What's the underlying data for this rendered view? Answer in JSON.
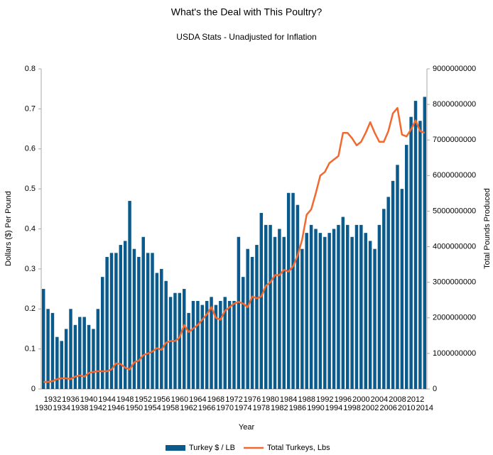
{
  "chart_data": {
    "type": "bar",
    "title": "What's the Deal with This Poultry?",
    "subtitle": "USDA Stats - Unadjusted for Inflation",
    "x_label": "Year",
    "y_label": "Dollars ($) Per Pound",
    "y2_label": "Total Pounds Produced",
    "categories": [
      1930,
      null,
      1932,
      null,
      1934,
      null,
      1936,
      null,
      1938,
      null,
      1940,
      null,
      1942,
      null,
      1944,
      null,
      1946,
      null,
      1948,
      null,
      1950,
      null,
      1952,
      null,
      1954,
      null,
      1956,
      null,
      1958,
      null,
      1960,
      null,
      1962,
      null,
      1964,
      null,
      1966,
      null,
      1968,
      null,
      1970,
      null,
      1972,
      null,
      1974,
      null,
      1976,
      null,
      1978,
      null,
      1980,
      null,
      1982,
      null,
      1984,
      null,
      1986,
      null,
      1988,
      null,
      1990,
      null,
      1992,
      null,
      1994,
      null,
      1996,
      null,
      1998,
      null,
      2000,
      null,
      2002,
      null,
      2004,
      null,
      2006,
      null,
      2008,
      null,
      2010,
      null,
      2012,
      null,
      2014
    ],
    "series": [
      {
        "name": "Turkey $ / LB",
        "type": "bar",
        "color": "#0b5a8c",
        "values": [
          0.25,
          0.2,
          0.19,
          0.13,
          0.12,
          0.15,
          0.2,
          0.16,
          0.18,
          0.18,
          0.16,
          0.15,
          0.2,
          0.28,
          0.33,
          0.34,
          0.34,
          0.36,
          0.37,
          0.47,
          0.35,
          0.33,
          0.38,
          0.34,
          0.34,
          0.29,
          0.3,
          0.27,
          0.23,
          0.24,
          0.24,
          0.25,
          0.19,
          0.22,
          0.22,
          0.21,
          0.22,
          0.23,
          0.21,
          0.22,
          0.23,
          0.22,
          0.22,
          0.38,
          0.28,
          0.35,
          0.33,
          0.36,
          0.44,
          0.41,
          0.41,
          0.38,
          0.4,
          0.38,
          0.49,
          0.49,
          0.46,
          0.35,
          0.39,
          0.41,
          0.4,
          0.39,
          0.38,
          0.39,
          0.4,
          0.41,
          0.43,
          0.41,
          0.38,
          0.41,
          0.41,
          0.39,
          0.37,
          0.35,
          0.41,
          0.45,
          0.48,
          0.52,
          0.56,
          0.5,
          0.61,
          0.68,
          0.72,
          0.67,
          0.73
        ]
      },
      {
        "name": "Total Turkeys, Lbs",
        "type": "line",
        "axis": "y2",
        "color": "#f2692f",
        "values": [
          200000000,
          200000000,
          220000000,
          280000000,
          300000000,
          300000000,
          280000000,
          350000000,
          380000000,
          350000000,
          450000000,
          480000000,
          500000000,
          500000000,
          500000000,
          550000000,
          720000000,
          700000000,
          600000000,
          550000000,
          750000000,
          800000000,
          950000000,
          1000000000,
          1050000000,
          1150000000,
          1100000000,
          1300000000,
          1350000000,
          1350000000,
          1450000000,
          1800000000,
          1600000000,
          1700000000,
          1800000000,
          1950000000,
          2100000000,
          2300000000,
          2000000000,
          1950000000,
          2200000000,
          2300000000,
          2400000000,
          2450000000,
          2400000000,
          2300000000,
          2600000000,
          2550000000,
          2600000000,
          2900000000,
          3000000000,
          3200000000,
          3200000000,
          3350000000,
          3300000000,
          3450000000,
          3750000000,
          4200000000,
          4900000000,
          5050000000,
          5500000000,
          6000000000,
          6100000000,
          6350000000,
          6450000000,
          6550000000,
          7200000000,
          7200000000,
          7050000000,
          6850000000,
          6950000000,
          7200000000,
          7500000000,
          7200000000,
          6950000000,
          6950000000,
          7250000000,
          7750000000,
          7900000000,
          7150000000,
          7100000000,
          7300000000,
          7550000000,
          7250000000,
          7200000000
        ]
      }
    ],
    "ylim": [
      0,
      0.8
    ],
    "yticks": [
      0,
      0.1,
      0.2,
      0.3,
      0.4,
      0.5,
      0.6,
      0.7,
      0.8
    ],
    "y2lim": [
      0,
      9000000000
    ],
    "y2ticks": [
      0,
      1000000000,
      2000000000,
      3000000000,
      4000000000,
      5000000000,
      6000000000,
      7000000000,
      8000000000,
      9000000000
    ],
    "legend": "bottom"
  }
}
